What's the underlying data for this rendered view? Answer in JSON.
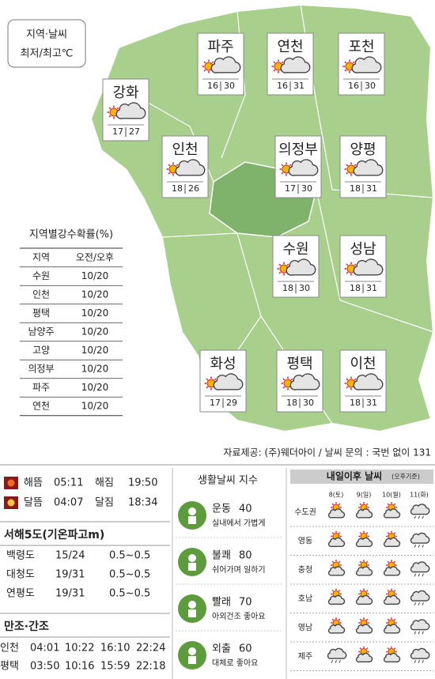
{
  "legend": {
    "title": "지역·날씨",
    "subtitle": "최저/최고℃"
  },
  "cities": [
    {
      "name": "파주",
      "low": 16,
      "high": 30
    },
    {
      "name": "연천",
      "low": 16,
      "high": 31
    },
    {
      "name": "포천",
      "low": 16,
      "high": 30
    },
    {
      "name": "강화",
      "low": 17,
      "high": 27
    },
    {
      "name": "인천",
      "low": 18,
      "high": 26
    },
    {
      "name": "의정부",
      "low": 17,
      "high": 30
    },
    {
      "name": "양평",
      "low": 18,
      "high": 31
    },
    {
      "name": "수원",
      "low": 18,
      "high": 30
    },
    {
      "name": "성남",
      "low": 18,
      "high": 31
    },
    {
      "name": "화성",
      "low": 17,
      "high": 29
    },
    {
      "name": "평택",
      "low": 18,
      "high": 30
    },
    {
      "name": "이천",
      "low": 18,
      "high": 31
    }
  ],
  "precipitation": {
    "title": "지역별강수확률(%)",
    "header": [
      "지역",
      "오전/오후"
    ],
    "rows": [
      [
        "수원",
        "10/20"
      ],
      [
        "인천",
        "10/20"
      ],
      [
        "평택",
        "10/20"
      ],
      [
        "남양주",
        "10/20"
      ],
      [
        "고양",
        "10/20"
      ],
      [
        "의정부",
        "10/20"
      ],
      [
        "파주",
        "10/20"
      ],
      [
        "연천",
        "10/20"
      ]
    ]
  },
  "source": "자료제공: (주)웨더아이 / 날씨 문의 : 국번 없이 131",
  "sun_moon": [
    [
      "해뜸",
      "05:11",
      "해짐",
      "19:50"
    ],
    [
      "달뜸",
      "04:07",
      "달짐",
      "18:34"
    ]
  ],
  "islands": {
    "title": "서해5도(기온파고m)",
    "rows": [
      [
        "백령도",
        "15/24",
        "0.5~0.5"
      ],
      [
        "대청도",
        "19/31",
        "0.5~0.5"
      ],
      [
        "연평도",
        "19/31",
        "0.5~0.5"
      ]
    ]
  },
  "tides": {
    "title": "만조·간조",
    "rows": [
      [
        "인천",
        "04:01",
        "10:22",
        "16:10",
        "22:24"
      ],
      [
        "평택",
        "03:50",
        "10:16",
        "15:59",
        "22:18"
      ]
    ]
  },
  "life_index": {
    "title": "생활날씨 지수",
    "items": [
      {
        "name": "운동",
        "value": 40,
        "note": "실내에서 가볍게"
      },
      {
        "name": "불쾌",
        "value": 80,
        "note": "쉬어가며 일하기"
      },
      {
        "name": "빨래",
        "value": 70,
        "note": "아외건조 좋아요"
      },
      {
        "name": "외출",
        "value": 60,
        "note": "대체로 좋아요"
      }
    ]
  },
  "forecast": {
    "title": "내일이후 날씨",
    "subtitle": "(오후기준)",
    "days": [
      "8(토)",
      "9(일)",
      "10(월)",
      "11(화)"
    ],
    "regions": [
      "수도권",
      "영동",
      "충청",
      "호남",
      "영남",
      "제주"
    ]
  }
}
